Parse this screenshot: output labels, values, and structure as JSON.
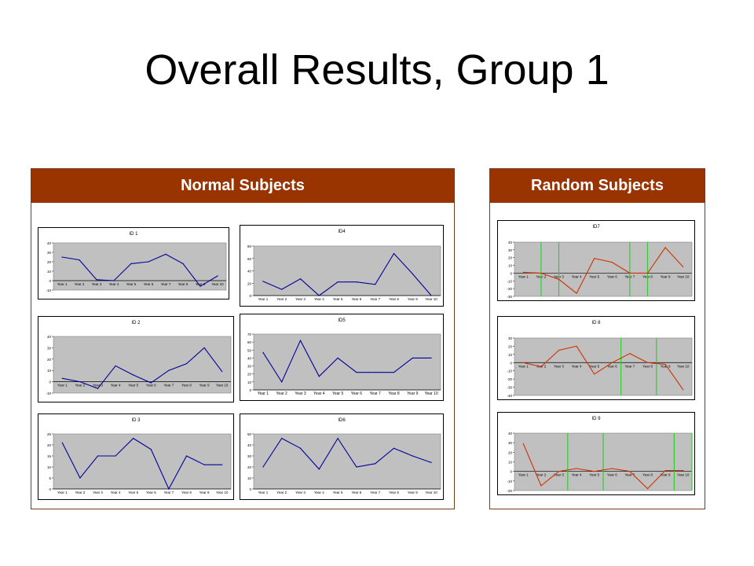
{
  "slide": {
    "title": "Overall Results, Group 1"
  },
  "panels": {
    "normal": {
      "title": "Normal Subjects"
    },
    "random": {
      "title": "Random Subjects"
    }
  },
  "colors": {
    "header": "#993300",
    "normal_line": "#000099",
    "random_line": "#cc3300",
    "marker": "#33cc33",
    "plot_bg": "#c0c0c0"
  },
  "chart_data": [
    {
      "id": "ID 1",
      "type": "line",
      "title": "ID 1",
      "categories": [
        "Year 1",
        "Year 2",
        "Year 3",
        "Year 4",
        "Year 5",
        "Year 6",
        "Year 7",
        "Year 8",
        "Year 9",
        "Year 10"
      ],
      "yticks": [
        40,
        30,
        20,
        10,
        0,
        -10
      ],
      "ylim": [
        -10,
        40
      ],
      "series": [
        {
          "values": [
            25,
            22,
            1,
            0,
            18,
            20,
            28,
            18,
            -6,
            5
          ]
        }
      ]
    },
    {
      "id": "ID4",
      "type": "line",
      "title": "ID4",
      "categories": [
        "Year 1",
        "Year 2",
        "Year 3",
        "Year 4",
        "Year 5",
        "Year 6",
        "Year 7",
        "Year 8",
        "Year 9",
        "Year 10"
      ],
      "yticks": [
        80,
        60,
        40,
        20,
        0
      ],
      "ylim": [
        0,
        80
      ],
      "series": [
        {
          "values": [
            23,
            10,
            27,
            0,
            22,
            22,
            18,
            68,
            35,
            0
          ]
        }
      ]
    },
    {
      "id": "ID 2",
      "type": "line",
      "title": "ID 2",
      "categories": [
        "Year 1",
        "Year 2",
        "Year 3",
        "Year 4",
        "Year 5",
        "Year 6",
        "Year 7",
        "Year 8",
        "Year 9",
        "Year 10"
      ],
      "yticks": [
        40,
        30,
        20,
        10,
        0,
        -10
      ],
      "ylim": [
        -10,
        40
      ],
      "series": [
        {
          "values": [
            3,
            0,
            -6,
            14,
            6,
            -1,
            10,
            16,
            30,
            9
          ]
        }
      ]
    },
    {
      "id": "ID5",
      "type": "line",
      "title": "ID5",
      "categories": [
        "Year 1",
        "Year 2",
        "Year 3",
        "Year 4",
        "Year 5",
        "Year 6",
        "Year 7",
        "Year 8",
        "Year 9",
        "Year 10"
      ],
      "yticks": [
        70,
        60,
        50,
        40,
        30,
        20,
        10,
        0
      ],
      "ylim": [
        0,
        70
      ],
      "series": [
        {
          "values": [
            47,
            10,
            62,
            17,
            40,
            22,
            22,
            22,
            40,
            40
          ]
        }
      ]
    },
    {
      "id": "ID 3",
      "type": "line",
      "title": "ID 3",
      "categories": [
        "Year 1",
        "Year 2",
        "Year 3",
        "Year 4",
        "Year 5",
        "Year 6",
        "Year 7",
        "Year 8",
        "Year 9",
        "Year 10"
      ],
      "yticks": [
        25,
        20,
        15,
        10,
        5,
        0
      ],
      "ylim": [
        0,
        25
      ],
      "series": [
        {
          "values": [
            21,
            5,
            15,
            15,
            23,
            18,
            0,
            15,
            11,
            11
          ]
        }
      ]
    },
    {
      "id": "ID6",
      "type": "line",
      "title": "ID6",
      "categories": [
        "Year 1",
        "Year 2",
        "Year 3",
        "Year 4",
        "Year 5",
        "Year 6",
        "Year 7",
        "Year 8",
        "Year 9",
        "Year 10"
      ],
      "yticks": [
        50,
        40,
        30,
        20,
        10,
        0
      ],
      "ylim": [
        0,
        50
      ],
      "series": [
        {
          "values": [
            20,
            46,
            37,
            18,
            46,
            20,
            23,
            37,
            30,
            24
          ]
        }
      ]
    },
    {
      "id": "ID7",
      "type": "line",
      "title": "ID7",
      "categories": [
        "Year 1",
        "Year 2",
        "Year 3",
        "Year 4",
        "Year 5",
        "Year 6",
        "Year 7",
        "Year 8",
        "Year 9",
        "Year 10"
      ],
      "yticks": [
        40,
        30,
        20,
        10,
        0,
        -10,
        -20,
        -30
      ],
      "ylim": [
        -30,
        40
      ],
      "markers_at": [
        1.5,
        2.5,
        6.5,
        7.5
      ],
      "series": [
        {
          "values": [
            1,
            0,
            -8,
            -26,
            19,
            14,
            0,
            0,
            33,
            8
          ]
        }
      ]
    },
    {
      "id": "ID 8",
      "type": "line",
      "title": "ID 8",
      "categories": [
        "Year 1",
        "Year 2",
        "Year 3",
        "Year 4",
        "Year 5",
        "Year 6",
        "Year 7",
        "Year 8",
        "Year 9",
        "Year 10"
      ],
      "yticks": [
        30,
        20,
        10,
        0,
        -10,
        -20,
        -30,
        -40
      ],
      "ylim": [
        -40,
        30
      ],
      "markers_at": [
        6,
        8
      ],
      "series": [
        {
          "values": [
            0,
            -5,
            15,
            20,
            -14,
            0,
            11,
            0,
            -2,
            -33
          ]
        }
      ]
    },
    {
      "id": "ID 9",
      "type": "line",
      "title": "ID 9",
      "categories": [
        "Year 1",
        "Year 2",
        "Year 3",
        "Year 4",
        "Year 5",
        "Year 6",
        "Year 7",
        "Year 8",
        "Year 9",
        "Year 10"
      ],
      "yticks": [
        40,
        30,
        20,
        10,
        0,
        -10,
        -20
      ],
      "ylim": [
        -20,
        40
      ],
      "markers_at": [
        3,
        5,
        9,
        10
      ],
      "series": [
        {
          "values": [
            29,
            -15,
            0,
            3,
            0,
            3,
            0,
            -18,
            1,
            1
          ]
        }
      ]
    }
  ]
}
